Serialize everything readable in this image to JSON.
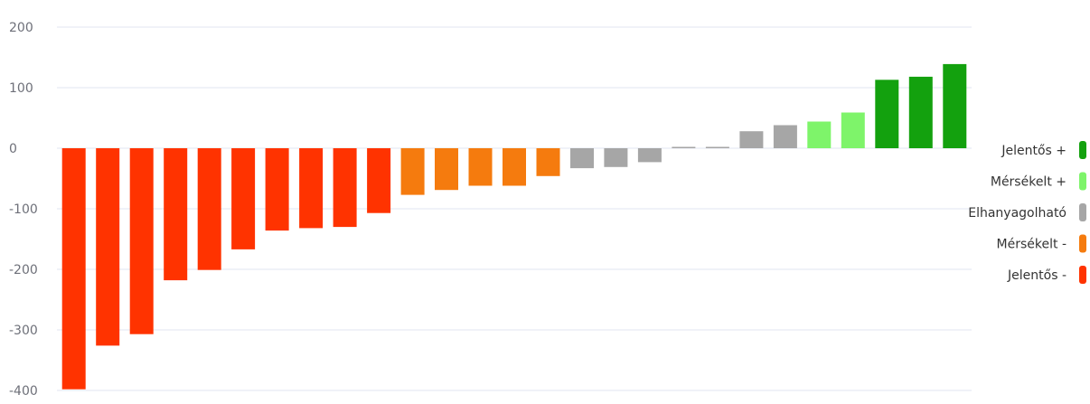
{
  "chart_data": {
    "type": "bar",
    "title": "",
    "xlabel": "",
    "ylabel": "",
    "ylim": [
      -400,
      200
    ],
    "yticks": [
      200,
      100,
      0,
      -100,
      -200,
      -300,
      -400
    ],
    "grid": true,
    "legend_position": "right",
    "values": [
      -398,
      -326,
      -307,
      -218,
      -201,
      -167,
      -136,
      -132,
      -130,
      -107,
      -77,
      -69,
      -62,
      -62,
      -46,
      -33,
      -31,
      -23,
      0,
      2,
      28,
      38,
      44,
      59,
      113,
      118,
      139
    ],
    "colors": [
      "#ff3300",
      "#ff3300",
      "#ff3300",
      "#ff3300",
      "#ff3300",
      "#ff3300",
      "#ff3300",
      "#ff3300",
      "#ff3300",
      "#ff3300",
      "#f57b0e",
      "#f57b0e",
      "#f57b0e",
      "#f57b0e",
      "#f57b0e",
      "#a6a6a6",
      "#a6a6a6",
      "#a6a6a6",
      "#a6a6a6",
      "#a6a6a6",
      "#a6a6a6",
      "#a6a6a6",
      "#7ef46a",
      "#7ef46a",
      "#13a10e",
      "#13a10e",
      "#13a10e"
    ],
    "legend": [
      {
        "label": "Jelentős +",
        "color": "#13a10e"
      },
      {
        "label": "Mérsékelt +",
        "color": "#7ef46a"
      },
      {
        "label": "Elhanyagolható",
        "color": "#a6a6a6"
      },
      {
        "label": "Mérsékelt -",
        "color": "#f57b0e"
      },
      {
        "label": "Jelentős -",
        "color": "#ff3300"
      }
    ]
  }
}
